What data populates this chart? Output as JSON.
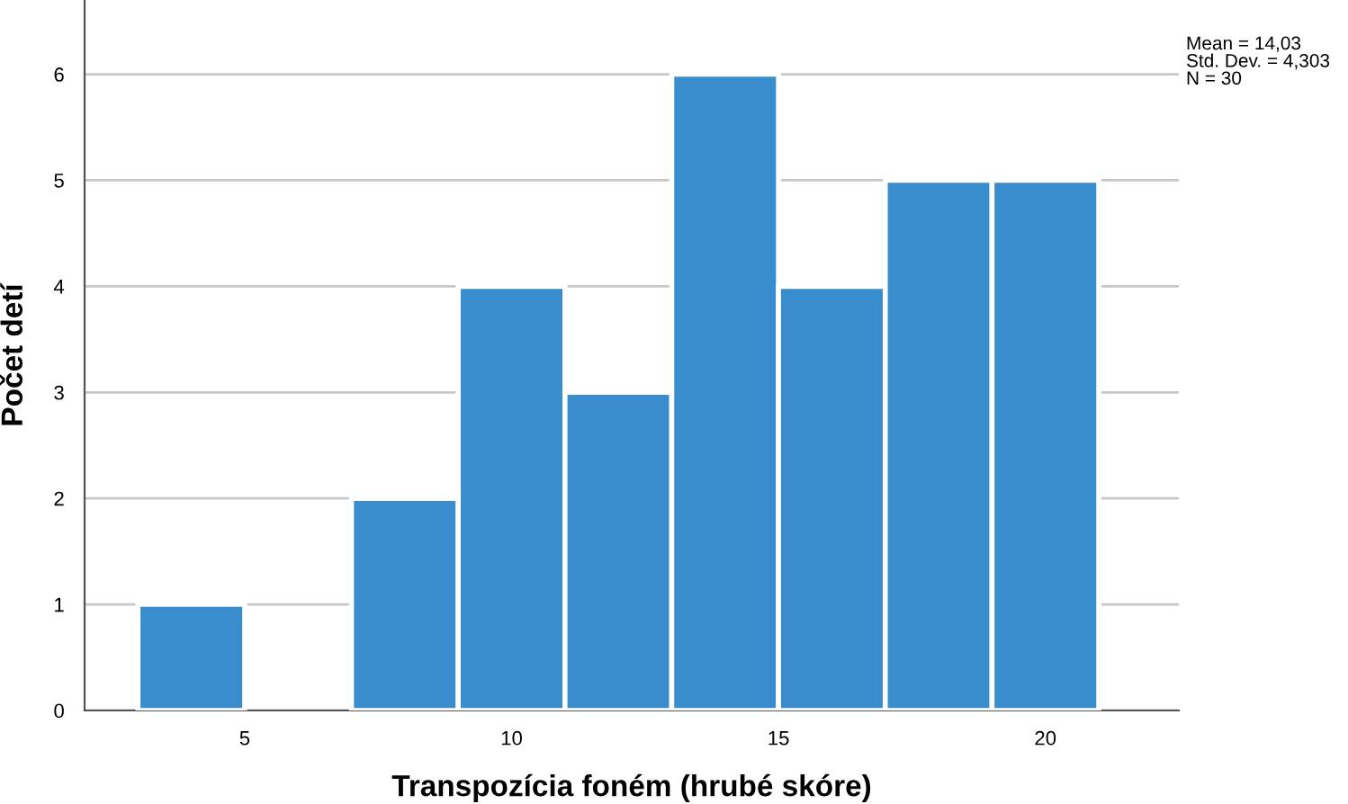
{
  "chart_data": {
    "type": "histogram",
    "xlabel": "Transpozícia foném (hrubé skóre)",
    "ylabel": "Počet detí",
    "bins": [
      3,
      5,
      7,
      9,
      11,
      13,
      15,
      17,
      19,
      21
    ],
    "values": [
      1,
      0,
      2,
      4,
      3,
      6,
      4,
      5,
      5
    ],
    "color": "#3a8dcd",
    "xlim": [
      2,
      22.5
    ],
    "xticks": [
      5,
      10,
      15,
      20
    ],
    "ylim": [
      0,
      6.7
    ],
    "yticks": [
      0,
      1,
      2,
      3,
      4,
      5,
      6
    ],
    "grid": "y",
    "annotations": [
      "Mean = 14,03\nStd. Dev. = 4,303\nN = 30"
    ]
  }
}
